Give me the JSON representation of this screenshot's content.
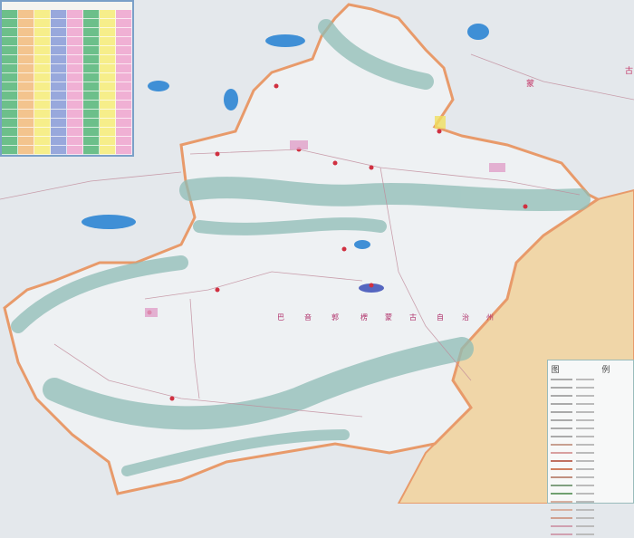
{
  "map": {
    "labels": {
      "prefecture_chars": [
        "巴",
        "音",
        "郭",
        "楞",
        "蒙",
        "古",
        "自",
        "治",
        "州"
      ],
      "mongolia_1": "蒙",
      "mongolia_2": "古"
    },
    "colors": {
      "background": "#e4e8ec",
      "region_fill": "#eef1f3",
      "border": "#e89a6a",
      "mountains": "#8fbcb6",
      "neighbor_fill": "#f0d6a8",
      "lake": "#3f8fd6"
    }
  },
  "legend": {
    "title": "图 例"
  },
  "table": {
    "colors": [
      "#6cbf8a",
      "#f3c48e",
      "#f6ee8a",
      "#98a8dc",
      "#f0b0d4",
      "#6cbf8a",
      "#f6ee8a",
      "#f0b0d4"
    ]
  }
}
